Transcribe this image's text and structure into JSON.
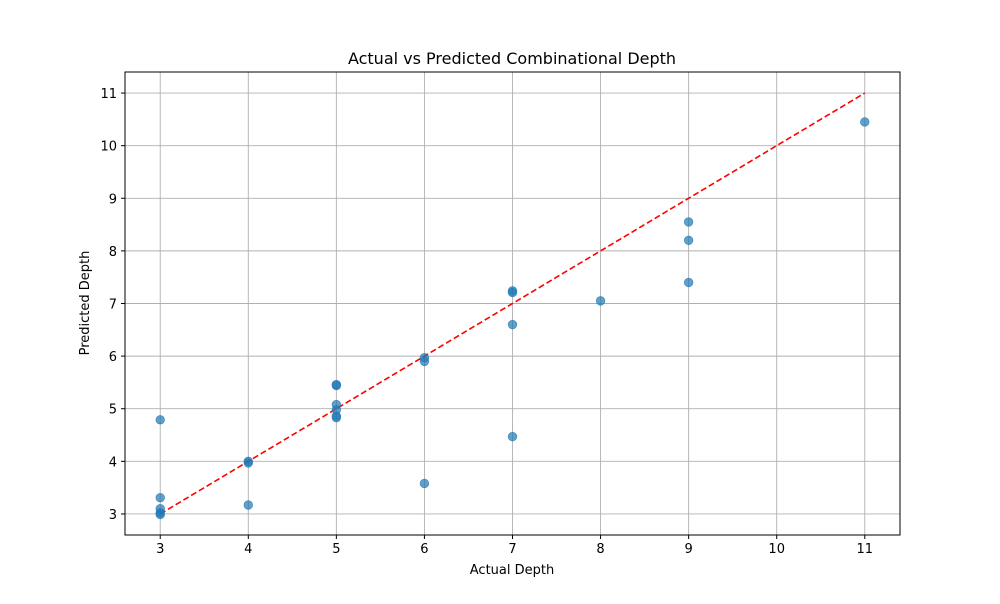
{
  "chart_data": {
    "type": "scatter",
    "title": "Actual vs Predicted Combinational Depth",
    "xlabel": "Actual Depth",
    "ylabel": "Predicted Depth",
    "xlim": [
      2.6,
      11.4
    ],
    "ylim": [
      2.6,
      11.4
    ],
    "xticks": [
      3,
      4,
      5,
      6,
      7,
      8,
      9,
      10,
      11
    ],
    "yticks": [
      3,
      4,
      5,
      6,
      7,
      8,
      9,
      10,
      11
    ],
    "xtick_labels": [
      "3",
      "4",
      "5",
      "6",
      "7",
      "8",
      "9",
      "10",
      "11"
    ],
    "ytick_labels": [
      "3",
      "4",
      "5",
      "6",
      "7",
      "8",
      "9",
      "10",
      "11"
    ],
    "grid": true,
    "colors": {
      "points": "#1f77b4",
      "reference_line": "#ff0000",
      "grid": "#b0b0b0"
    },
    "series": [
      {
        "points": [
          {
            "x": 3,
            "y": 4.79
          },
          {
            "x": 3,
            "y": 3.31
          },
          {
            "x": 3,
            "y": 3.1
          },
          {
            "x": 3,
            "y": 3.02
          },
          {
            "x": 3,
            "y": 2.99
          },
          {
            "x": 4,
            "y": 4.0
          },
          {
            "x": 4,
            "y": 3.97
          },
          {
            "x": 4,
            "y": 3.17
          },
          {
            "x": 5,
            "y": 5.46
          },
          {
            "x": 5,
            "y": 5.44
          },
          {
            "x": 5,
            "y": 5.08
          },
          {
            "x": 5,
            "y": 4.98
          },
          {
            "x": 5,
            "y": 4.86
          },
          {
            "x": 5,
            "y": 4.83
          },
          {
            "x": 6,
            "y": 5.97
          },
          {
            "x": 6,
            "y": 5.9
          },
          {
            "x": 6,
            "y": 3.58
          },
          {
            "x": 7,
            "y": 7.24
          },
          {
            "x": 7,
            "y": 7.21
          },
          {
            "x": 7,
            "y": 6.6
          },
          {
            "x": 7,
            "y": 4.47
          },
          {
            "x": 8,
            "y": 7.05
          },
          {
            "x": 9,
            "y": 8.55
          },
          {
            "x": 9,
            "y": 8.2
          },
          {
            "x": 9,
            "y": 7.4
          },
          {
            "x": 11,
            "y": 10.45
          }
        ]
      }
    ],
    "reference_line": {
      "style": "dashed",
      "x": [
        3,
        11
      ],
      "y": [
        3,
        11
      ]
    }
  }
}
